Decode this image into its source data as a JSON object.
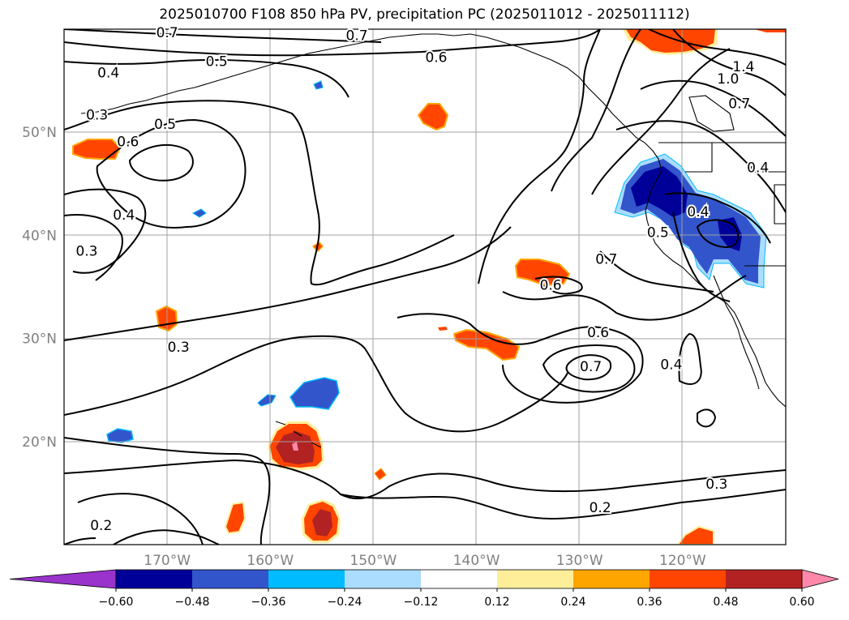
{
  "title": "2025010700 F108 850 hPa PV, precipitation PC (2025011012 - 2025011112)",
  "map": {
    "projection": "PlateCarree",
    "lon_range": [
      -180,
      -110
    ],
    "lat_range": [
      10,
      60
    ],
    "lon_ticks": [
      {
        "value": -170,
        "label": "170°W"
      },
      {
        "value": -160,
        "label": "160°W"
      },
      {
        "value": -150,
        "label": "150°W"
      },
      {
        "value": -140,
        "label": "140°W"
      },
      {
        "value": -130,
        "label": "130°W"
      },
      {
        "value": -120,
        "label": "120°W"
      }
    ],
    "lat_ticks": [
      {
        "value": 20,
        "label": "20°N"
      },
      {
        "value": 30,
        "label": "30°N"
      },
      {
        "value": 40,
        "label": "40°N"
      },
      {
        "value": 50,
        "label": "50°N"
      }
    ],
    "gridlines": true,
    "tick_label_color": "#808080"
  },
  "contour_labels": [
    {
      "text": "0.7",
      "lon": -170,
      "lat": 59.7
    },
    {
      "text": "0.7",
      "lon": -151.6,
      "lat": 59.4
    },
    {
      "text": "0.5",
      "lon": -165.2,
      "lat": 56.9
    },
    {
      "text": "0.4",
      "lon": -175.7,
      "lat": 55.8
    },
    {
      "text": "0.6",
      "lon": -143.9,
      "lat": 57.3
    },
    {
      "text": "1.4",
      "lon": -114.1,
      "lat": 56.4
    },
    {
      "text": "1.0",
      "lon": -115.6,
      "lat": 55.2
    },
    {
      "text": "0.7",
      "lon": -114.5,
      "lat": 52.8
    },
    {
      "text": "0.3",
      "lon": -176.8,
      "lat": 51.7
    },
    {
      "text": "0.5",
      "lon": -170.2,
      "lat": 50.8
    },
    {
      "text": "0.6",
      "lon": -173.8,
      "lat": 49.1
    },
    {
      "text": "0.4",
      "lon": -112.7,
      "lat": 46.6
    },
    {
      "text": "0.4",
      "lon": -174.2,
      "lat": 42.0
    },
    {
      "text": "0.4",
      "lon": -118.5,
      "lat": 42.3
    },
    {
      "text": "0.5",
      "lon": -122.4,
      "lat": 40.3
    },
    {
      "text": "0.3",
      "lon": -177.8,
      "lat": 38.5
    },
    {
      "text": "0.7",
      "lon": -127.4,
      "lat": 37.7
    },
    {
      "text": "0.6",
      "lon": -132.8,
      "lat": 35.2
    },
    {
      "text": "0.6",
      "lon": -128.2,
      "lat": 30.6
    },
    {
      "text": "0.3",
      "lon": -168.9,
      "lat": 29.2
    },
    {
      "text": "0.7",
      "lon": -128.9,
      "lat": 27.3
    },
    {
      "text": "0.4",
      "lon": -121.1,
      "lat": 27.5
    },
    {
      "text": "0.3",
      "lon": -116.7,
      "lat": 15.9
    },
    {
      "text": "0.2",
      "lon": -176.4,
      "lat": 11.9
    },
    {
      "text": "0.2",
      "lon": -128.0,
      "lat": 13.6
    }
  ],
  "colorbar": {
    "extend": "both",
    "boundaries": [
      -0.6,
      -0.48,
      -0.36,
      -0.24,
      -0.12,
      0.12,
      0.24,
      0.36,
      0.48,
      0.6
    ],
    "tick_labels": [
      "−0.60",
      "−0.48",
      "−0.36",
      "−0.24",
      "−0.12",
      "0.12",
      "0.24",
      "0.36",
      "0.48",
      "0.60"
    ],
    "colors": [
      "#9933cc",
      "#000099",
      "#3355cc",
      "#00bbff",
      "#aaddff",
      "#ffffff",
      "#ffee99",
      "#ffa500",
      "#ff4500",
      "#b22222",
      "#ff88aa"
    ]
  },
  "colors": {
    "land_outline": "#000000",
    "contour_line": "#000000",
    "grid": "#a0a0a0"
  }
}
